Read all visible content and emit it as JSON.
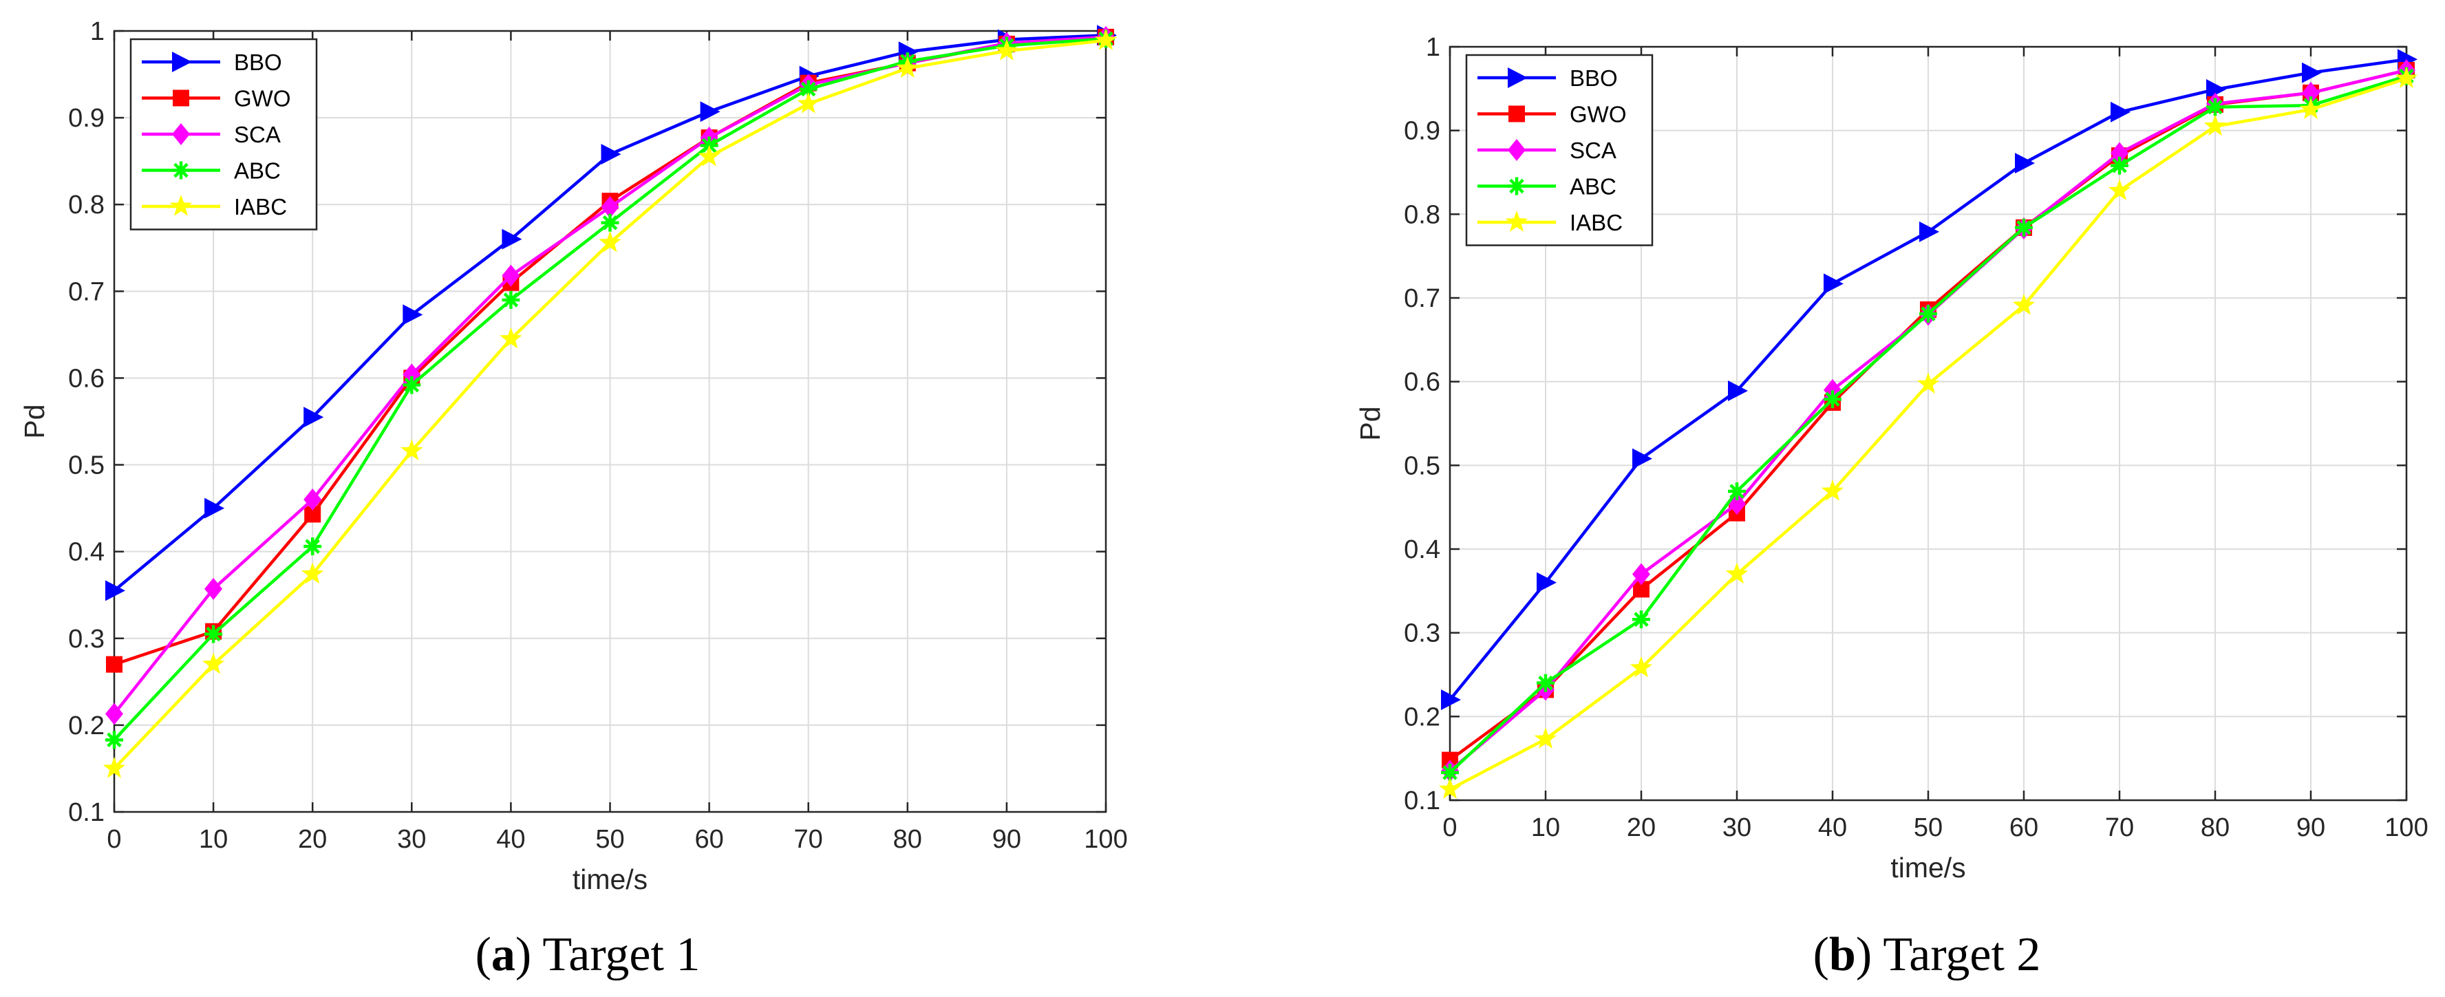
{
  "series_styles": [
    {
      "name": "BBO",
      "color": "#0000ff",
      "marker": "triangle-right"
    },
    {
      "name": "GWO",
      "color": "#ff0000",
      "marker": "square"
    },
    {
      "name": "SCA",
      "color": "#ff00ff",
      "marker": "diamond"
    },
    {
      "name": "ABC",
      "color": "#00ff00",
      "marker": "asterisk"
    },
    {
      "name": "IABC",
      "color": "#ffff00",
      "marker": "star"
    }
  ],
  "chart_data": [
    {
      "type": "line",
      "caption_tag": "a",
      "caption_title": "Target 1",
      "xlabel": "time/s",
      "ylabel": "Pd",
      "xlim": [
        0,
        100
      ],
      "ylim": [
        0.1,
        1
      ],
      "x": [
        0,
        10,
        20,
        30,
        40,
        50,
        60,
        70,
        80,
        90,
        100
      ],
      "xticks": [
        "0",
        "10",
        "20",
        "30",
        "40",
        "50",
        "60",
        "70",
        "80",
        "90",
        "100"
      ],
      "yticks": [
        "0.1",
        "0.2",
        "0.3",
        "0.4",
        "0.5",
        "0.6",
        "0.7",
        "0.8",
        "0.9",
        "1"
      ],
      "grid": true,
      "legend_position": "top-left",
      "series": [
        {
          "name": "BBO",
          "values": [
            0.355,
            0.45,
            0.555,
            0.673,
            0.76,
            0.858,
            0.907,
            0.948,
            0.976,
            0.99,
            0.995
          ]
        },
        {
          "name": "GWO",
          "values": [
            0.27,
            0.308,
            0.443,
            0.6,
            0.71,
            0.804,
            0.877,
            0.94,
            0.963,
            0.985,
            0.993
          ]
        },
        {
          "name": "SCA",
          "values": [
            0.213,
            0.357,
            0.46,
            0.604,
            0.718,
            0.797,
            0.877,
            0.938,
            0.963,
            0.986,
            0.993
          ]
        },
        {
          "name": "ABC",
          "values": [
            0.183,
            0.305,
            0.406,
            0.592,
            0.69,
            0.779,
            0.868,
            0.933,
            0.965,
            0.983,
            0.991
          ]
        },
        {
          "name": "IABC",
          "values": [
            0.15,
            0.27,
            0.374,
            0.516,
            0.645,
            0.756,
            0.855,
            0.916,
            0.957,
            0.977,
            0.989
          ]
        }
      ]
    },
    {
      "type": "line",
      "caption_tag": "b",
      "caption_title": "Target 2",
      "xlabel": "time/s",
      "ylabel": "Pd",
      "xlim": [
        0,
        100
      ],
      "ylim": [
        0.1,
        1
      ],
      "x": [
        0,
        10,
        20,
        30,
        40,
        50,
        60,
        70,
        80,
        90,
        100
      ],
      "xticks": [
        "0",
        "10",
        "20",
        "30",
        "40",
        "50",
        "60",
        "70",
        "80",
        "90",
        "100"
      ],
      "yticks": [
        "0.1",
        "0.2",
        "0.3",
        "0.4",
        "0.5",
        "0.6",
        "0.7",
        "0.8",
        "0.9",
        "1"
      ],
      "grid": true,
      "legend_position": "top-left",
      "series": [
        {
          "name": "BBO",
          "values": [
            0.22,
            0.36,
            0.508,
            0.589,
            0.717,
            0.779,
            0.861,
            0.922,
            0.949,
            0.969,
            0.985
          ]
        },
        {
          "name": "GWO",
          "values": [
            0.148,
            0.232,
            0.352,
            0.443,
            0.575,
            0.686,
            0.784,
            0.87,
            0.931,
            0.945,
            0.972
          ]
        },
        {
          "name": "SCA",
          "values": [
            0.135,
            0.232,
            0.37,
            0.454,
            0.59,
            0.68,
            0.783,
            0.873,
            0.932,
            0.945,
            0.972
          ]
        },
        {
          "name": "ABC",
          "values": [
            0.133,
            0.24,
            0.316,
            0.469,
            0.579,
            0.681,
            0.784,
            0.858,
            0.928,
            0.93,
            0.965
          ]
        },
        {
          "name": "IABC",
          "values": [
            0.113,
            0.173,
            0.258,
            0.37,
            0.469,
            0.597,
            0.691,
            0.828,
            0.905,
            0.925,
            0.962
          ]
        }
      ]
    }
  ]
}
